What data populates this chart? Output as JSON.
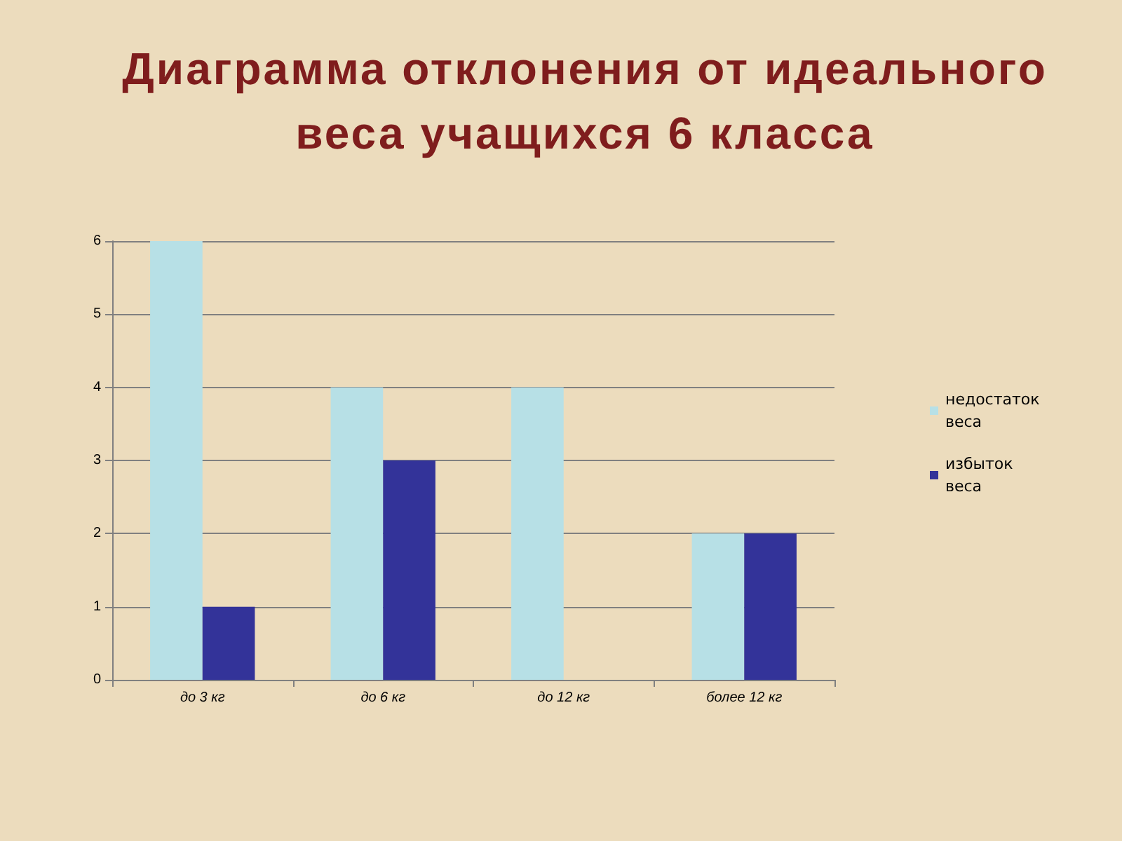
{
  "chart_data": {
    "type": "bar",
    "title": "Диаграмма отклонения от идеального веса учащихся 6 класса",
    "categories": [
      "до 3 кг",
      "до 6 кг",
      "до 12 кг",
      "более 12 кг"
    ],
    "series": [
      {
        "name": "недостаток веса",
        "color": "#b7e0e6",
        "values": [
          6,
          4,
          4,
          2
        ]
      },
      {
        "name": "избыток веса",
        "color": "#333399",
        "values": [
          1,
          3,
          0,
          2
        ]
      }
    ],
    "ylim": [
      0,
      6
    ],
    "yticks": [
      0,
      1,
      2,
      3,
      4,
      5,
      6
    ],
    "grid": "y",
    "legend": "right"
  }
}
